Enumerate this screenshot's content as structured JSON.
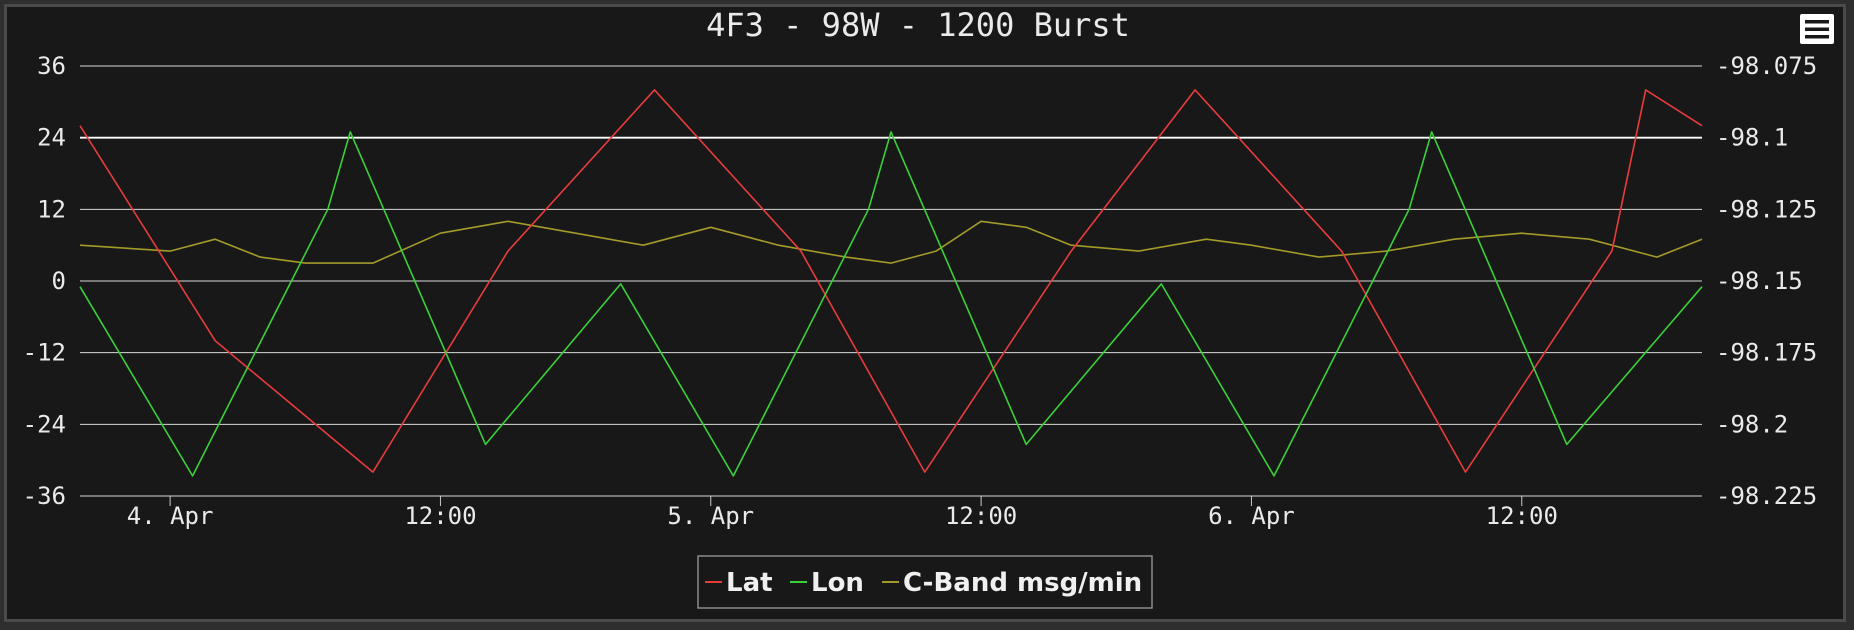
{
  "chart_data": {
    "type": "line",
    "title": "4F3 - 98W - 1200 Burst",
    "x_range": [
      "2024-04-03T20:00",
      "2024-04-06T20:00"
    ],
    "x_ticks": [
      {
        "label": "4. Apr",
        "at": "2024-04-04T00:00"
      },
      {
        "label": "12:00",
        "at": "2024-04-04T12:00"
      },
      {
        "label": "5. Apr",
        "at": "2024-04-05T00:00"
      },
      {
        "label": "12:00",
        "at": "2024-04-05T12:00"
      },
      {
        "label": "6. Apr",
        "at": "2024-04-06T00:00"
      },
      {
        "label": "12:00",
        "at": "2024-04-06T12:00"
      }
    ],
    "y_left": {
      "min": -36,
      "max": 36,
      "ticks": [
        "36",
        "24",
        "12",
        "0",
        "-12",
        "-24",
        "-36"
      ]
    },
    "y_right": {
      "min": -98.225,
      "max": -98.075,
      "ticks": [
        "-98.075",
        "-98.1",
        "-98.125",
        "-98.15",
        "-98.175",
        "-98.2",
        "-98.225"
      ]
    },
    "grid": true,
    "legend_position": "bottom-center",
    "series": [
      {
        "name": "Lat",
        "color": "#e83c3c",
        "axis": "left",
        "points": [
          [
            "2024-04-03T20:00",
            26
          ],
          [
            "2024-04-04T02:00",
            -10
          ],
          [
            "2024-04-04T09:00",
            -32
          ],
          [
            "2024-04-04T15:00",
            5
          ],
          [
            "2024-04-04T21:30",
            32
          ],
          [
            "2024-04-05T04:00",
            5
          ],
          [
            "2024-04-05T09:30",
            -32
          ],
          [
            "2024-04-05T16:00",
            5
          ],
          [
            "2024-04-05T21:30",
            32
          ],
          [
            "2024-04-06T04:00",
            5
          ],
          [
            "2024-04-06T09:30",
            -32
          ],
          [
            "2024-04-06T16:00",
            5
          ],
          [
            "2024-04-06T17:30",
            32
          ],
          [
            "2024-04-06T20:00",
            26
          ]
        ]
      },
      {
        "name": "Lon",
        "color": "#3ad13a",
        "axis": "right",
        "points": [
          [
            "2024-04-03T20:00",
            -98.152
          ],
          [
            "2024-04-04T01:00",
            -98.218
          ],
          [
            "2024-04-04T07:00",
            -98.125
          ],
          [
            "2024-04-04T08:00",
            -98.098
          ],
          [
            "2024-04-04T14:00",
            -98.207
          ],
          [
            "2024-04-04T20:00",
            -98.151
          ],
          [
            "2024-04-05T01:00",
            -98.218
          ],
          [
            "2024-04-05T07:00",
            -98.125
          ],
          [
            "2024-04-05T08:00",
            -98.098
          ],
          [
            "2024-04-05T14:00",
            -98.207
          ],
          [
            "2024-04-05T20:00",
            -98.151
          ],
          [
            "2024-04-06T01:00",
            -98.218
          ],
          [
            "2024-04-06T07:00",
            -98.125
          ],
          [
            "2024-04-06T08:00",
            -98.098
          ],
          [
            "2024-04-06T14:00",
            -98.207
          ],
          [
            "2024-04-06T20:00",
            -98.152
          ]
        ]
      },
      {
        "name": "C-Band msg/min",
        "color": "#a49a2a",
        "axis": "left",
        "points": [
          [
            "2024-04-03T20:00",
            6
          ],
          [
            "2024-04-04T00:00",
            5
          ],
          [
            "2024-04-04T02:00",
            7
          ],
          [
            "2024-04-04T04:00",
            4
          ],
          [
            "2024-04-04T06:00",
            3
          ],
          [
            "2024-04-04T09:00",
            3
          ],
          [
            "2024-04-04T12:00",
            8
          ],
          [
            "2024-04-04T15:00",
            10
          ],
          [
            "2024-04-04T18:00",
            8
          ],
          [
            "2024-04-04T21:00",
            6
          ],
          [
            "2024-04-05T00:00",
            9
          ],
          [
            "2024-04-05T03:00",
            6
          ],
          [
            "2024-04-05T06:00",
            4
          ],
          [
            "2024-04-05T08:00",
            3
          ],
          [
            "2024-04-05T10:00",
            5
          ],
          [
            "2024-04-05T12:00",
            10
          ],
          [
            "2024-04-05T14:00",
            9
          ],
          [
            "2024-04-05T16:00",
            6
          ],
          [
            "2024-04-05T19:00",
            5
          ],
          [
            "2024-04-05T22:00",
            7
          ],
          [
            "2024-04-06T00:00",
            6
          ],
          [
            "2024-04-06T03:00",
            4
          ],
          [
            "2024-04-06T06:00",
            5
          ],
          [
            "2024-04-06T09:00",
            7
          ],
          [
            "2024-04-06T12:00",
            8
          ],
          [
            "2024-04-06T15:00",
            7
          ],
          [
            "2024-04-06T18:00",
            4
          ],
          [
            "2024-04-06T20:00",
            7
          ]
        ]
      }
    ]
  }
}
